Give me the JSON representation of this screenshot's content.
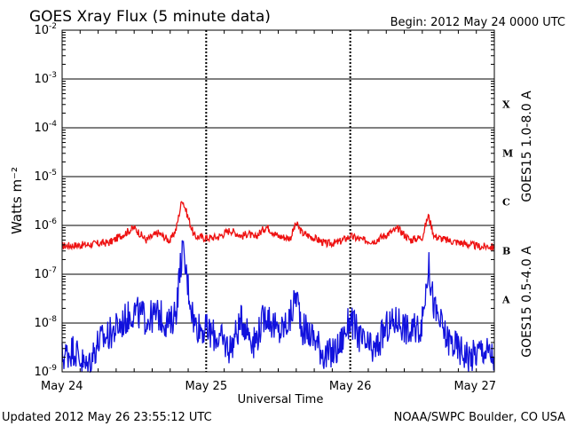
{
  "header": {
    "title": "GOES Xray Flux (5 minute data)",
    "begin": "Begin:  2012 May 24 0000 UTC"
  },
  "footer": {
    "updated": "Updated 2012 May 26 23:55:12 UTC",
    "credit": "NOAA/SWPC Boulder, CO USA"
  },
  "colors": {
    "long": "#ee1111",
    "short": "#1111dd",
    "axes": "#000000"
  },
  "chart_data": {
    "type": "line",
    "xlabel": "Universal Time",
    "ylabel": "Watts m⁻²",
    "yscale": "log",
    "ylim": [
      1e-09,
      0.01
    ],
    "ytick_labels": [
      {
        "base": "10",
        "exp": "-9",
        "value": 1e-09
      },
      {
        "base": "10",
        "exp": "-8",
        "value": 1e-08
      },
      {
        "base": "10",
        "exp": "-7",
        "value": 1e-07
      },
      {
        "base": "10",
        "exp": "-6",
        "value": 1e-06
      },
      {
        "base": "10",
        "exp": "-5",
        "value": 1e-05
      },
      {
        "base": "10",
        "exp": "-4",
        "value": 0.0001
      },
      {
        "base": "10",
        "exp": "-3",
        "value": 0.001
      },
      {
        "base": "10",
        "exp": "-2",
        "value": 0.01
      }
    ],
    "xlim": [
      "2012-05-24 00:00",
      "2012-05-27 00:00"
    ],
    "xtick_labels": [
      "May 24",
      "May 25",
      "May 26",
      "May 27"
    ],
    "flare_classes": [
      {
        "label": "X",
        "value": 0.0001
      },
      {
        "label": "M",
        "value": 1e-05
      },
      {
        "label": "C",
        "value": 1e-06
      },
      {
        "label": "B",
        "value": 1e-07
      },
      {
        "label": "A",
        "value": 1e-08
      }
    ],
    "grid": true,
    "series": [
      {
        "name": "GOES15 1.0-8.0 A",
        "color": "#ee1111",
        "x_hours": [
          0,
          4,
          8,
          12,
          14,
          16,
          18,
          19,
          20,
          22,
          24,
          26,
          28,
          30,
          31,
          32,
          34,
          36,
          38,
          39,
          40,
          42,
          44,
          46,
          48,
          50,
          52,
          54,
          56,
          58,
          60,
          61,
          62,
          64,
          66,
          68,
          70,
          71,
          72
        ],
        "values": [
          3.8e-07,
          4e-07,
          4.5e-07,
          9e-07,
          5e-07,
          7e-07,
          4.8e-07,
          8.5e-07,
          3.5e-06,
          6e-07,
          5.5e-07,
          5.8e-07,
          8e-07,
          6e-07,
          7e-07,
          5.5e-07,
          9.5e-07,
          6e-07,
          5.5e-07,
          1.1e-06,
          7e-07,
          5.5e-07,
          4.2e-07,
          4.5e-07,
          6e-07,
          5e-07,
          4.8e-07,
          6.5e-07,
          8.5e-07,
          5e-07,
          5.8e-07,
          1.6e-06,
          6e-07,
          5e-07,
          4.5e-07,
          4e-07,
          3.6e-07,
          3.8e-07,
          3.5e-07
        ]
      },
      {
        "name": "GOES15 0.5-4.0 A",
        "color": "#1111dd",
        "x_hours": [
          0,
          2,
          4,
          6,
          8,
          10,
          12,
          14,
          16,
          18,
          19,
          20,
          22,
          24,
          26,
          28,
          30,
          32,
          34,
          36,
          38,
          39,
          40,
          42,
          44,
          46,
          48,
          50,
          52,
          54,
          56,
          58,
          60,
          61,
          62,
          64,
          66,
          68,
          70,
          72
        ],
        "values": [
          2e-09,
          3e-09,
          1.2e-09,
          4e-09,
          6e-09,
          1e-08,
          1.8e-08,
          1.2e-08,
          1.5e-08,
          9e-09,
          2e-08,
          3.2e-07,
          1e-08,
          7e-09,
          5e-09,
          3e-09,
          1.2e-08,
          4e-09,
          1.6e-08,
          6e-09,
          1.2e-08,
          4e-08,
          8e-09,
          5e-09,
          2e-09,
          3e-09,
          1.2e-08,
          4e-09,
          2.5e-09,
          8e-09,
          1.2e-08,
          6e-09,
          1e-08,
          1.6e-07,
          2e-08,
          5e-09,
          3e-09,
          2e-09,
          3e-09,
          2e-09
        ]
      }
    ]
  }
}
